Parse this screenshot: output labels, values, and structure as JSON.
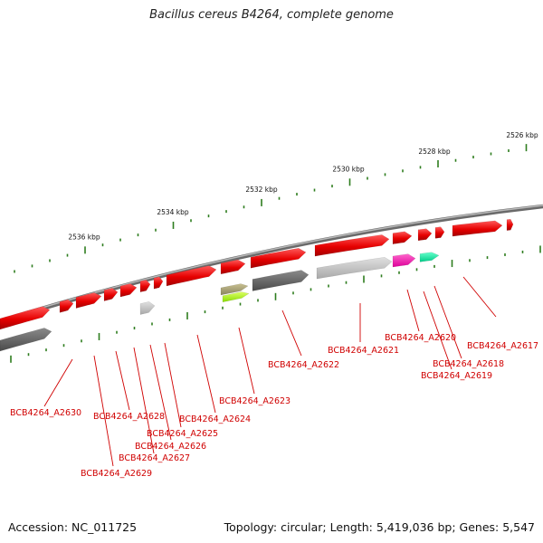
{
  "title": "Bacillus cereus B4264, complete genome",
  "footer": {
    "accession": "Accession: NC_011725",
    "summary": "Topology: circular; Length: 5,419,036 bp; Genes: 5,547"
  },
  "colors": {
    "backbone": "#8a8a8a",
    "forward_gene": "#ee1111",
    "label": "#d00000",
    "tick": "#2e7d1e"
  },
  "scale_labels": [
    "2526 kbp",
    "2528 kbp",
    "2530 kbp",
    "2532 kbp",
    "2534 kbp",
    "2536 kbp"
  ],
  "gene_labels": [
    "BCB4264_A2617",
    "BCB4264_A2618",
    "BCB4264_A2619",
    "BCB4264_A2620",
    "BCB4264_A2621",
    "BCB4264_A2622",
    "BCB4264_A2623",
    "BCB4264_A2624",
    "BCB4264_A2625",
    "BCB4264_A2626",
    "BCB4264_A2627",
    "BCB4264_A2628",
    "BCB4264_A2629",
    "BCB4264_A2630"
  ]
}
